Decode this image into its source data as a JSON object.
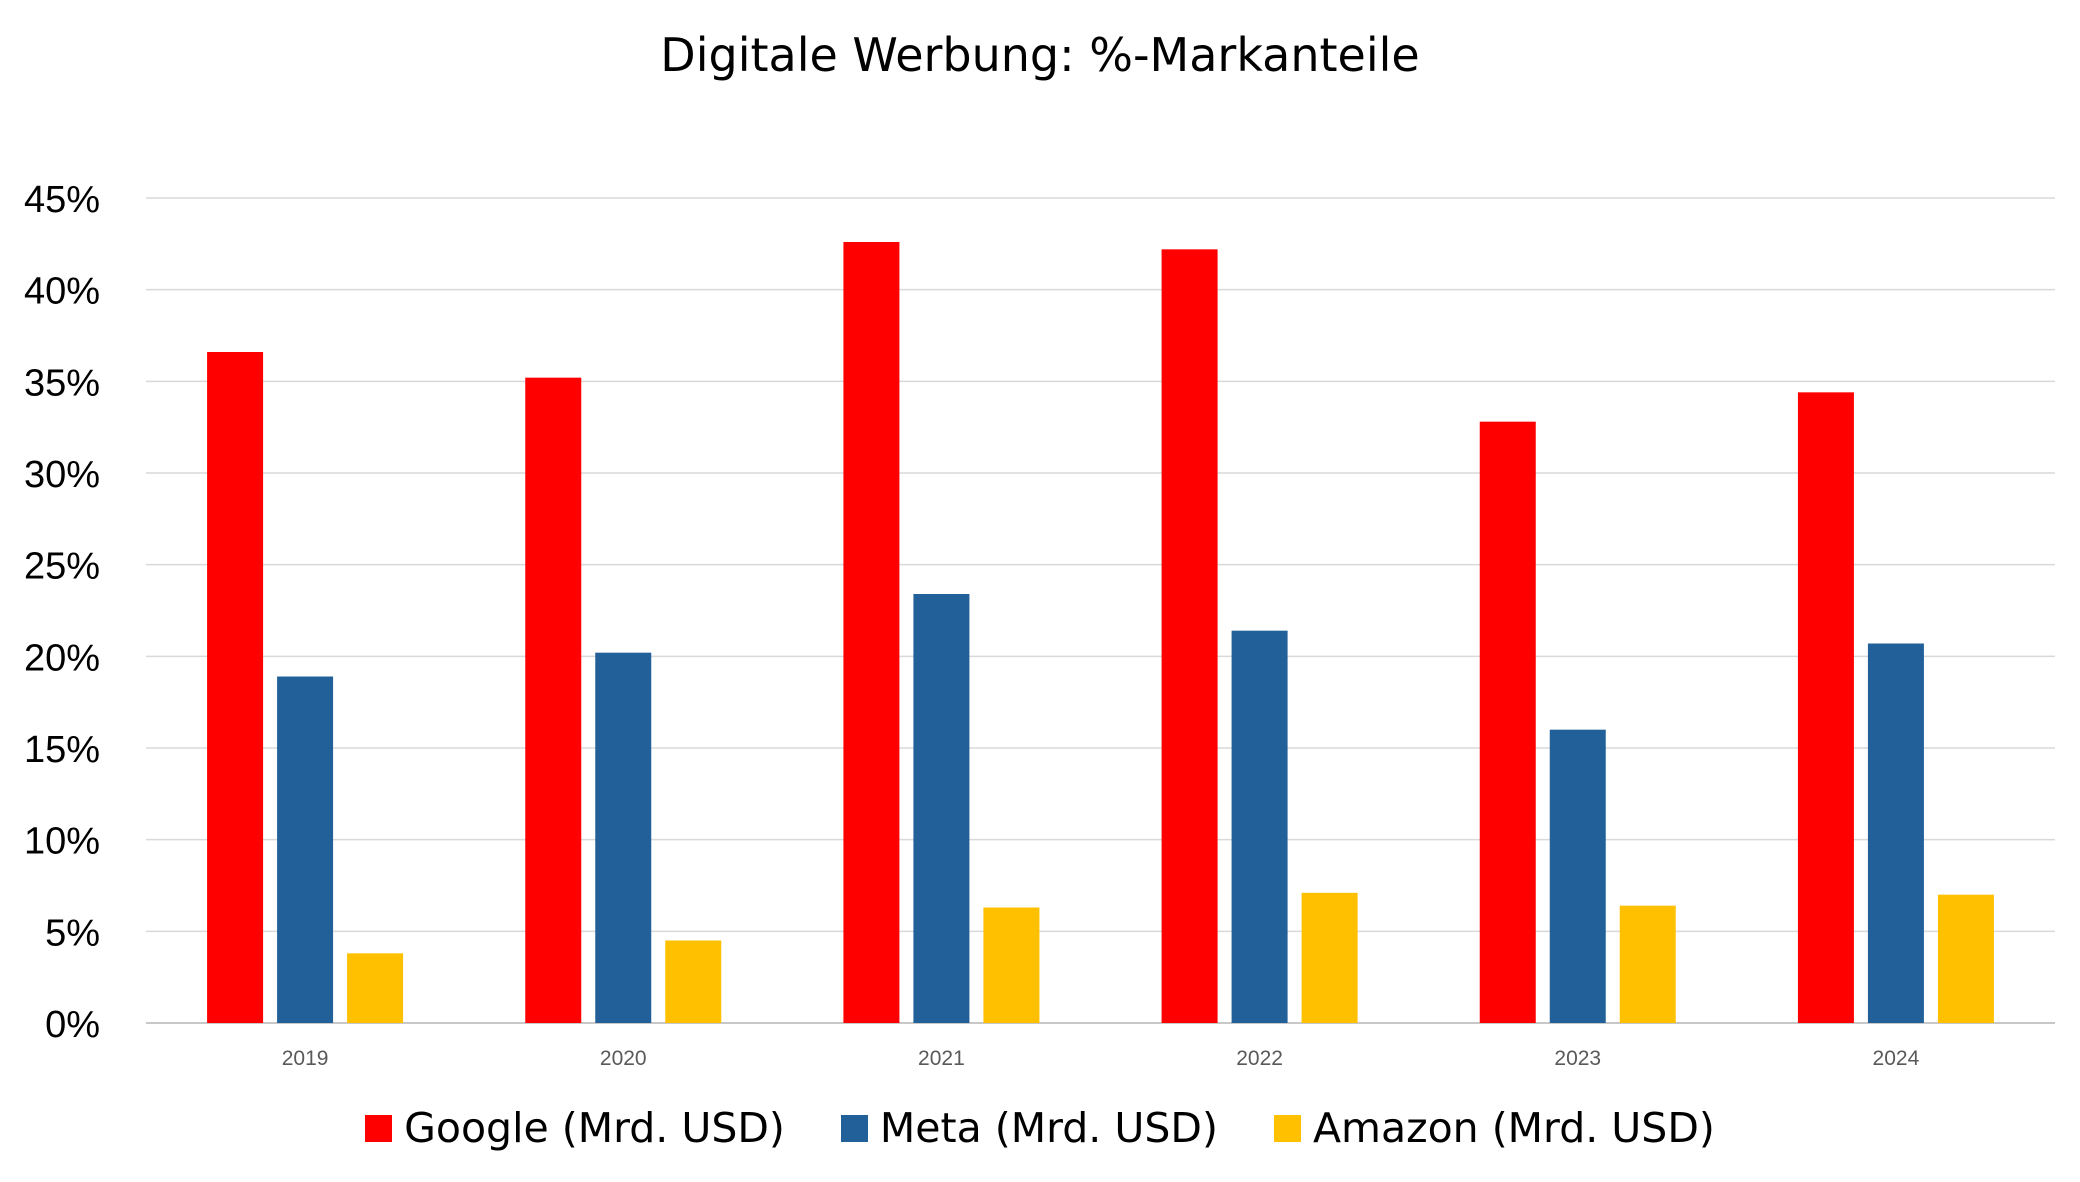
{
  "chart_data": {
    "type": "bar",
    "title": "Digitale Werbung: %-Markanteile",
    "xlabel": "",
    "ylabel": "",
    "categories": [
      "2019",
      "2020",
      "2021",
      "2022",
      "2023",
      "2024"
    ],
    "ylim": [
      0,
      45
    ],
    "yticks": [
      0,
      5,
      10,
      15,
      20,
      25,
      30,
      35,
      40,
      45
    ],
    "ytick_labels": [
      "0%",
      "5%",
      "10%",
      "15%",
      "20%",
      "25%",
      "30%",
      "35%",
      "40%",
      "45%"
    ],
    "grid": true,
    "legend_position": "bottom",
    "series": [
      {
        "name": "Google (Mrd. USD)",
        "color": "#FF0000",
        "values": [
          36.6,
          35.2,
          42.6,
          42.2,
          32.8,
          34.4
        ]
      },
      {
        "name": "Meta (Mrd. USD)",
        "color": "#22609A",
        "values": [
          18.9,
          20.2,
          23.4,
          21.4,
          16.0,
          20.7
        ]
      },
      {
        "name": "Amazon (Mrd. USD)",
        "color": "#FFC000",
        "values": [
          3.8,
          4.5,
          6.3,
          7.1,
          6.4,
          7.0
        ]
      }
    ]
  }
}
